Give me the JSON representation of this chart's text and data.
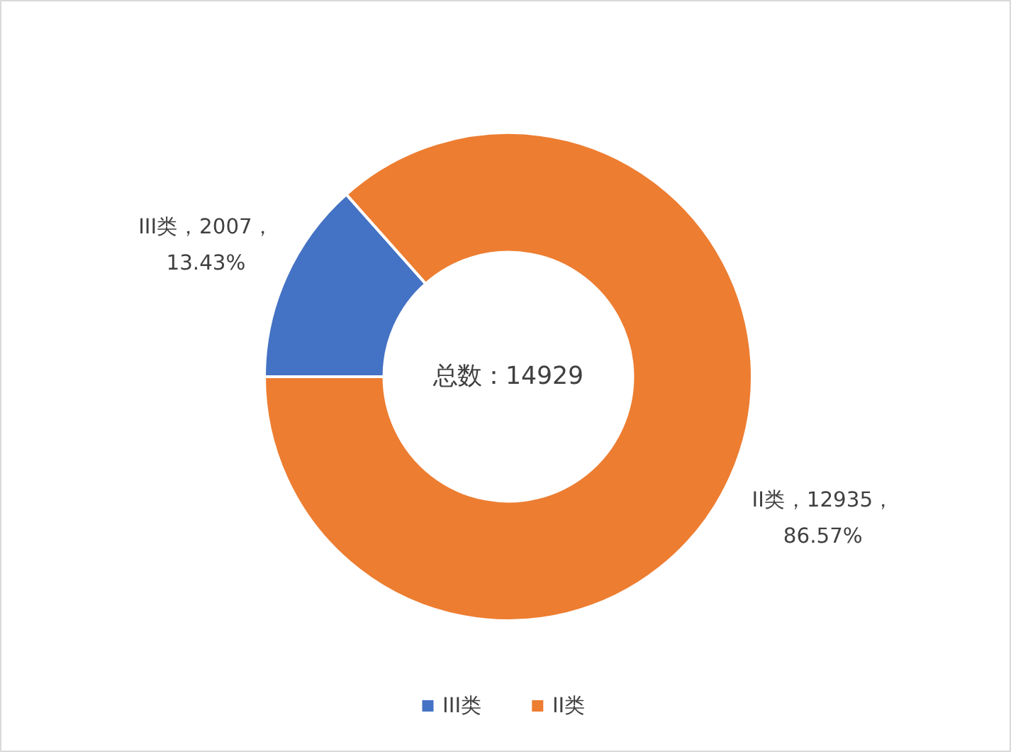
{
  "chart_data": {
    "type": "donut",
    "categories": [
      "III类",
      "II类"
    ],
    "values": [
      2007,
      12935
    ],
    "colors": [
      "#4472c4",
      "#ed7d31"
    ],
    "value_labels": [
      "III类，2007，\n13.43%",
      "II类，12935，\n86.57%"
    ],
    "annotations": [
      "总数：14929"
    ],
    "legend": "bottom"
  }
}
